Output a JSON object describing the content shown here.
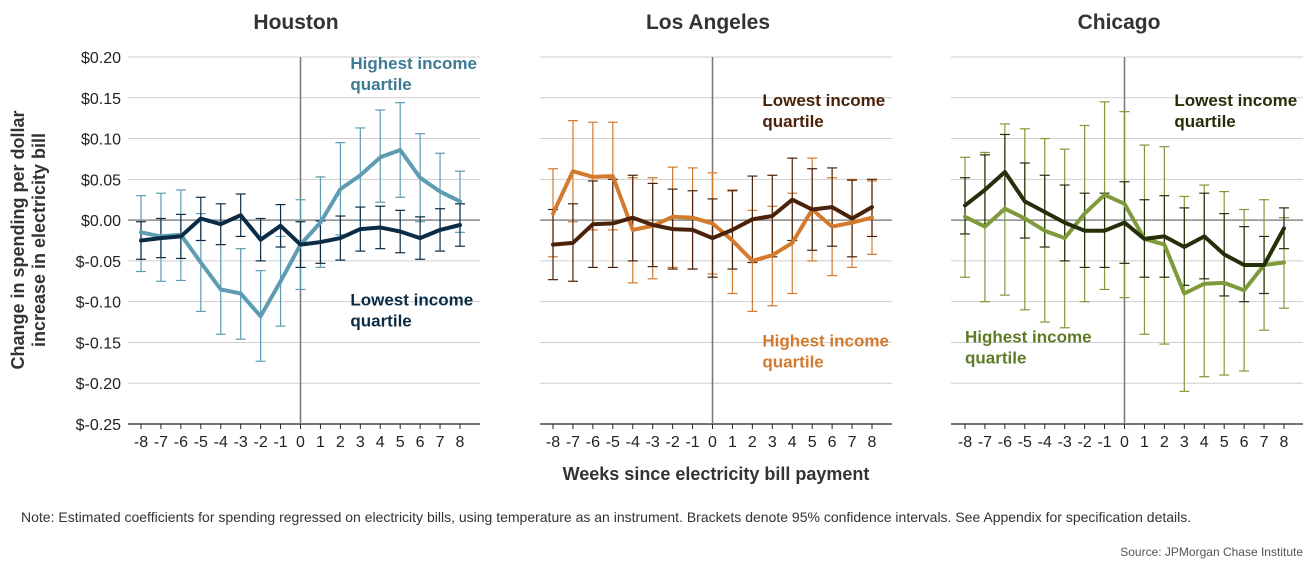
{
  "chart_data": {
    "type": "line",
    "ylabel": "Change in spending per dollar increase in electricity bill",
    "xlabel": "Weeks since electricity bill payment",
    "ylim": [
      -0.25,
      0.2
    ],
    "yticks": [
      0.2,
      0.15,
      0.1,
      0.05,
      0.0,
      -0.05,
      -0.1,
      -0.15,
      -0.2,
      -0.25
    ],
    "ytick_labels": [
      "$0.20",
      "$0.15",
      "$0.10",
      "$0.05",
      "$0.00",
      "$-0.05",
      "$-0.10",
      "$-0.15",
      "$-0.20",
      "$-0.25"
    ],
    "x": [
      -8,
      -7,
      -6,
      -5,
      -4,
      -3,
      -2,
      -1,
      0,
      1,
      2,
      3,
      4,
      5,
      6,
      7,
      8
    ],
    "x_tick_labels": [
      "-8",
      "-7",
      "-6",
      "-5",
      "-4",
      "-3",
      "-2",
      "-1",
      "0",
      "1",
      "2",
      "3",
      "4",
      "5",
      "6",
      "7",
      "8"
    ],
    "grid": true,
    "panels": [
      {
        "title": "Houston",
        "series": [
          {
            "name": "Highest income quartile",
            "color": "#5e9cb2",
            "values": [
              -0.015,
              -0.02,
              -0.018,
              -0.052,
              -0.085,
              -0.09,
              -0.118,
              -0.075,
              -0.03,
              -0.003,
              0.038,
              0.055,
              0.077,
              0.086,
              0.052,
              0.035,
              0.023
            ],
            "ci_low": [
              -0.063,
              -0.075,
              -0.074,
              -0.112,
              -0.14,
              -0.146,
              -0.173,
              -0.13,
              -0.085,
              -0.058,
              -0.018,
              0.0,
              0.022,
              0.028,
              -0.002,
              -0.012,
              -0.015
            ],
            "ci_high": [
              0.03,
              0.033,
              0.037,
              0.008,
              -0.03,
              -0.035,
              -0.062,
              -0.02,
              0.025,
              0.053,
              0.095,
              0.113,
              0.135,
              0.144,
              0.106,
              0.082,
              0.06
            ]
          },
          {
            "name": "Lowest income quartile",
            "color": "#0b2c46",
            "values": [
              -0.025,
              -0.022,
              -0.02,
              0.002,
              -0.005,
              0.006,
              -0.024,
              -0.007,
              -0.03,
              -0.027,
              -0.022,
              -0.011,
              -0.009,
              -0.014,
              -0.022,
              -0.012,
              -0.006
            ],
            "ci_low": [
              -0.048,
              -0.046,
              -0.047,
              -0.025,
              -0.03,
              -0.02,
              -0.05,
              -0.033,
              -0.058,
              -0.053,
              -0.049,
              -0.038,
              -0.035,
              -0.04,
              -0.048,
              -0.038,
              -0.032
            ],
            "ci_high": [
              -0.002,
              0.002,
              0.007,
              0.028,
              0.02,
              0.032,
              0.002,
              0.019,
              -0.002,
              -0.001,
              0.005,
              0.016,
              0.017,
              0.012,
              0.004,
              0.014,
              0.02
            ]
          }
        ],
        "annotations": [
          {
            "text": [
              "Highest income",
              "quartile"
            ],
            "color": "#3d7a93",
            "x": 2.5,
            "y": 0.185
          },
          {
            "text": [
              "Lowest income",
              "quartile"
            ],
            "color": "#0b2c46",
            "x": 2.5,
            "y": -0.105
          }
        ]
      },
      {
        "title": "Los Angeles",
        "series": [
          {
            "name": "Highest income quartile",
            "color": "#d47a2e",
            "values": [
              0.008,
              0.06,
              0.053,
              0.054,
              -0.012,
              -0.007,
              0.004,
              0.003,
              -0.004,
              -0.025,
              -0.05,
              -0.043,
              -0.028,
              0.013,
              -0.008,
              -0.003,
              0.003
            ],
            "ci_low": [
              -0.045,
              -0.002,
              -0.012,
              -0.012,
              -0.077,
              -0.072,
              -0.058,
              -0.06,
              -0.066,
              -0.09,
              -0.112,
              -0.105,
              -0.09,
              -0.05,
              -0.068,
              -0.058,
              -0.042
            ],
            "ci_high": [
              0.063,
              0.122,
              0.12,
              0.12,
              0.052,
              0.052,
              0.065,
              0.064,
              0.058,
              0.037,
              0.012,
              0.017,
              0.033,
              0.076,
              0.052,
              0.05,
              0.048
            ]
          },
          {
            "name": "Lowest income quartile",
            "color": "#4a2209",
            "values": [
              -0.03,
              -0.028,
              -0.005,
              -0.004,
              0.003,
              -0.006,
              -0.011,
              -0.012,
              -0.022,
              -0.012,
              0.001,
              0.005,
              0.025,
              0.013,
              0.016,
              0.002,
              0.016
            ],
            "ci_low": [
              -0.073,
              -0.075,
              -0.058,
              -0.058,
              -0.05,
              -0.057,
              -0.06,
              -0.06,
              -0.07,
              -0.06,
              -0.052,
              -0.045,
              -0.025,
              -0.037,
              -0.032,
              -0.045,
              -0.02
            ],
            "ci_high": [
              0.013,
              0.02,
              0.048,
              0.05,
              0.055,
              0.045,
              0.038,
              0.036,
              0.026,
              0.036,
              0.054,
              0.055,
              0.076,
              0.063,
              0.064,
              0.049,
              0.05
            ]
          }
        ],
        "annotations": [
          {
            "text": [
              "Lowest income",
              "quartile"
            ],
            "color": "#4a2209",
            "x": 2.5,
            "y": 0.14
          },
          {
            "text": [
              "Highest income",
              "quartile"
            ],
            "color": "#d47a2e",
            "x": 2.5,
            "y": -0.155
          }
        ]
      },
      {
        "title": "Chicago",
        "series": [
          {
            "name": "Highest income quartile",
            "color": "#7e9a3a",
            "values": [
              0.004,
              -0.008,
              0.014,
              0.002,
              -0.013,
              -0.022,
              0.008,
              0.031,
              0.02,
              -0.023,
              -0.03,
              -0.09,
              -0.078,
              -0.077,
              -0.086,
              -0.055,
              -0.052
            ],
            "ci_low": [
              -0.07,
              -0.1,
              -0.092,
              -0.11,
              -0.125,
              -0.132,
              -0.1,
              -0.085,
              -0.095,
              -0.14,
              -0.152,
              -0.21,
              -0.192,
              -0.19,
              -0.185,
              -0.135,
              -0.108
            ],
            "ci_high": [
              0.077,
              0.083,
              0.118,
              0.112,
              0.1,
              0.087,
              0.116,
              0.145,
              0.133,
              0.092,
              0.09,
              0.029,
              0.043,
              0.035,
              0.013,
              0.025,
              0.003
            ]
          },
          {
            "name": "Lowest income quartile",
            "color": "#25300a",
            "values": [
              0.018,
              0.037,
              0.059,
              0.023,
              0.01,
              -0.003,
              -0.013,
              -0.013,
              -0.003,
              -0.023,
              -0.02,
              -0.033,
              -0.02,
              -0.042,
              -0.055,
              -0.055,
              -0.01
            ],
            "ci_low": [
              -0.017,
              -0.005,
              0.012,
              -0.022,
              -0.033,
              -0.05,
              -0.058,
              -0.058,
              -0.053,
              -0.07,
              -0.07,
              -0.08,
              -0.072,
              -0.093,
              -0.1,
              -0.09,
              -0.035
            ],
            "ci_high": [
              0.052,
              0.08,
              0.105,
              0.07,
              0.055,
              0.043,
              0.033,
              0.033,
              0.047,
              0.025,
              0.03,
              0.015,
              0.033,
              0.008,
              -0.008,
              -0.02,
              0.015
            ]
          }
        ],
        "annotations": [
          {
            "text": [
              "Lowest income",
              "quartile"
            ],
            "color": "#25300a",
            "x": 2.5,
            "y": 0.14
          },
          {
            "text": [
              "Highest income",
              "quartile"
            ],
            "color": "#5e7a26",
            "x": -8,
            "y": -0.15
          }
        ]
      }
    ]
  },
  "note": "Note: Estimated coefficients for spending regressed on electricity bills, using temperature as an instrument. Brackets denote 95% confidence intervals. See Appendix for specification details.",
  "source": "Source: JPMorgan Chase Institute"
}
